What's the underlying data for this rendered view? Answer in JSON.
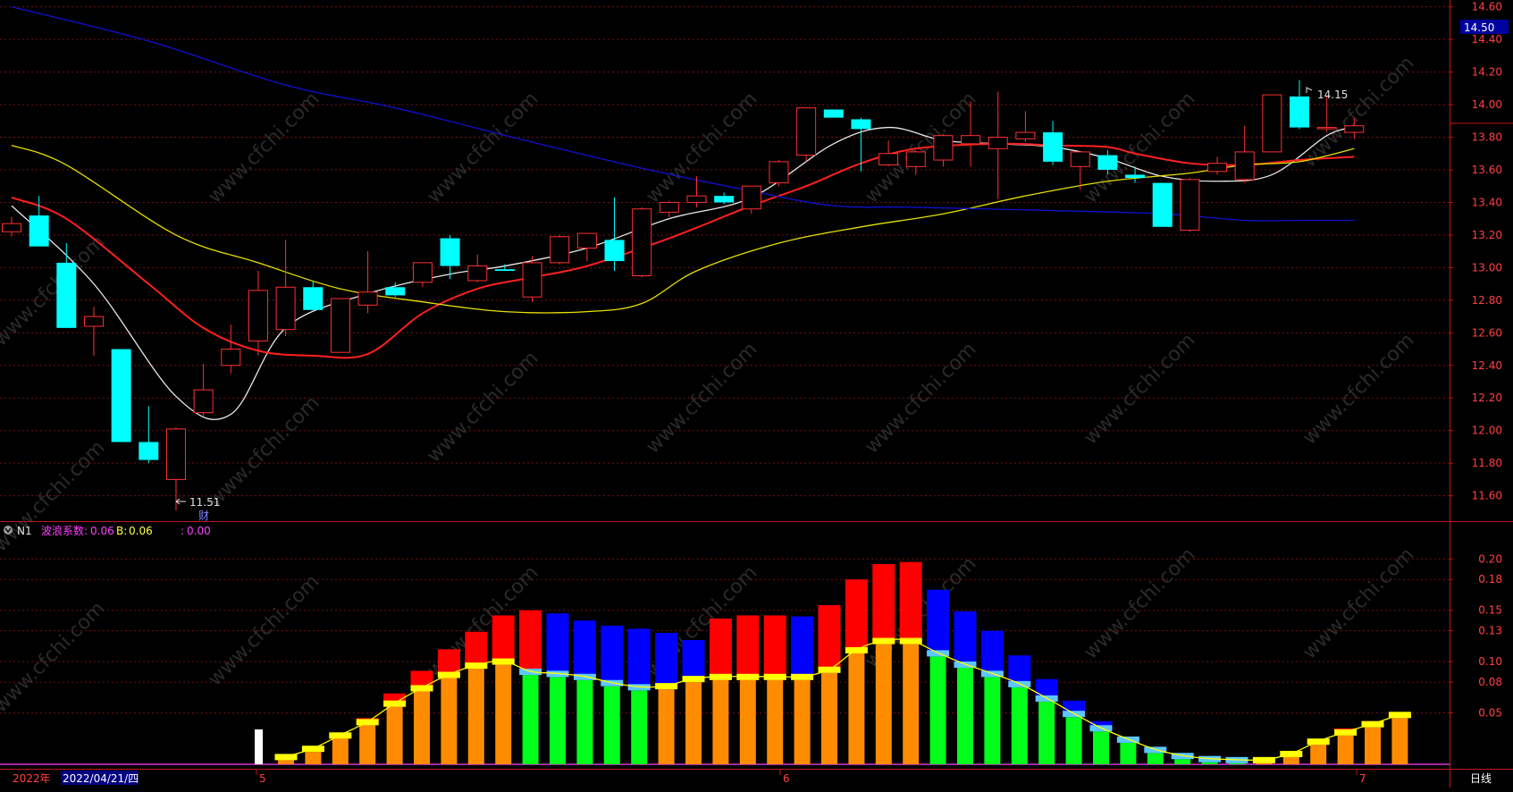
{
  "chart_data": [
    {
      "type": "candlestick",
      "panel": "price",
      "ylim": [
        11.45,
        14.62
      ],
      "y_ticks": [
        "14.60",
        "14.40",
        "14.20",
        "14.00",
        "13.80",
        "13.60",
        "13.40",
        "13.20",
        "13.00",
        "12.80",
        "12.60",
        "12.40",
        "12.20",
        "12.00",
        "11.80",
        "11.60"
      ],
      "current_price_label": "14.50",
      "annotations": {
        "high": "14.15",
        "low": "11.51",
        "low_marker": "财"
      },
      "candles": [
        {
          "o": 13.22,
          "h": 13.31,
          "l": 13.19,
          "c": 13.27
        },
        {
          "o": 13.32,
          "h": 13.44,
          "l": 13.13,
          "c": 13.13
        },
        {
          "o": 13.03,
          "h": 13.15,
          "l": 12.63,
          "c": 12.63
        },
        {
          "o": 12.64,
          "h": 12.76,
          "l": 12.46,
          "c": 12.7
        },
        {
          "o": 12.5,
          "h": 12.5,
          "l": 11.93,
          "c": 11.93
        },
        {
          "o": 11.93,
          "h": 12.15,
          "l": 11.8,
          "c": 11.82
        },
        {
          "o": 11.7,
          "h": 12.02,
          "l": 11.51,
          "c": 12.01
        },
        {
          "o": 12.11,
          "h": 12.41,
          "l": 12.09,
          "c": 12.25
        },
        {
          "o": 12.4,
          "h": 12.65,
          "l": 12.35,
          "c": 12.5
        },
        {
          "o": 12.55,
          "h": 12.98,
          "l": 12.46,
          "c": 12.86
        },
        {
          "o": 12.62,
          "h": 13.17,
          "l": 12.58,
          "c": 12.88
        },
        {
          "o": 12.88,
          "h": 12.92,
          "l": 12.74,
          "c": 12.74
        },
        {
          "o": 12.48,
          "h": 12.78,
          "l": 12.48,
          "c": 12.81
        },
        {
          "o": 12.77,
          "h": 13.1,
          "l": 12.72,
          "c": 12.85
        },
        {
          "o": 12.88,
          "h": 12.91,
          "l": 12.82,
          "c": 12.83
        },
        {
          "o": 12.91,
          "h": 13.03,
          "l": 12.88,
          "c": 13.03
        },
        {
          "o": 13.18,
          "h": 13.2,
          "l": 12.93,
          "c": 13.01
        },
        {
          "o": 12.92,
          "h": 13.08,
          "l": 12.91,
          "c": 13.01
        },
        {
          "o": 12.99,
          "h": 13.02,
          "l": 12.98,
          "c": 12.98
        },
        {
          "o": 12.82,
          "h": 13.07,
          "l": 12.79,
          "c": 13.03
        },
        {
          "o": 13.03,
          "h": 13.2,
          "l": 13.02,
          "c": 13.19
        },
        {
          "o": 13.12,
          "h": 13.21,
          "l": 13.04,
          "c": 13.21
        },
        {
          "o": 13.17,
          "h": 13.43,
          "l": 12.98,
          "c": 13.04
        },
        {
          "o": 12.95,
          "h": 13.37,
          "l": 12.94,
          "c": 13.36
        },
        {
          "o": 13.34,
          "h": 13.41,
          "l": 13.31,
          "c": 13.4
        },
        {
          "o": 13.4,
          "h": 13.56,
          "l": 13.37,
          "c": 13.44
        },
        {
          "o": 13.44,
          "h": 13.46,
          "l": 13.39,
          "c": 13.4
        },
        {
          "o": 13.36,
          "h": 13.48,
          "l": 13.33,
          "c": 13.5
        },
        {
          "o": 13.52,
          "h": 13.66,
          "l": 13.5,
          "c": 13.65
        },
        {
          "o": 13.69,
          "h": 13.97,
          "l": 13.65,
          "c": 13.98
        },
        {
          "o": 13.97,
          "h": 13.97,
          "l": 13.92,
          "c": 13.92
        },
        {
          "o": 13.91,
          "h": 13.92,
          "l": 13.59,
          "c": 13.85
        },
        {
          "o": 13.63,
          "h": 13.78,
          "l": 13.62,
          "c": 13.7
        },
        {
          "o": 13.62,
          "h": 13.72,
          "l": 13.57,
          "c": 13.71
        },
        {
          "o": 13.66,
          "h": 13.82,
          "l": 13.62,
          "c": 13.81
        },
        {
          "o": 13.76,
          "h": 14.02,
          "l": 13.62,
          "c": 13.81
        },
        {
          "o": 13.73,
          "h": 14.08,
          "l": 13.42,
          "c": 13.8
        },
        {
          "o": 13.79,
          "h": 13.96,
          "l": 13.77,
          "c": 13.83
        },
        {
          "o": 13.83,
          "h": 13.9,
          "l": 13.63,
          "c": 13.65
        },
        {
          "o": 13.62,
          "h": 13.69,
          "l": 13.48,
          "c": 13.71
        },
        {
          "o": 13.69,
          "h": 13.72,
          "l": 13.57,
          "c": 13.6
        },
        {
          "o": 13.57,
          "h": 13.62,
          "l": 13.52,
          "c": 13.55
        },
        {
          "o": 13.52,
          "h": 13.52,
          "l": 13.25,
          "c": 13.25
        },
        {
          "o": 13.23,
          "h": 13.55,
          "l": 13.22,
          "c": 13.54
        },
        {
          "o": 13.59,
          "h": 13.68,
          "l": 13.57,
          "c": 13.64
        },
        {
          "o": 13.54,
          "h": 13.87,
          "l": 13.52,
          "c": 13.71
        },
        {
          "o": 13.71,
          "h": 14.06,
          "l": 13.71,
          "c": 14.06
        },
        {
          "o": 14.05,
          "h": 14.15,
          "l": 13.85,
          "c": 13.86
        },
        {
          "o": 13.86,
          "h": 14.05,
          "l": 13.83,
          "c": 13.86
        },
        {
          "o": 13.83,
          "h": 13.92,
          "l": 13.79,
          "c": 13.87
        }
      ],
      "series": [
        {
          "name": "MA-white",
          "color": "#e8e8e8",
          "points": [
            [
              0,
              13.38
            ],
            [
              3,
              12.9
            ],
            [
              6,
              12.21
            ],
            [
              8,
              12.1
            ],
            [
              10,
              12.63
            ],
            [
              13,
              12.84
            ],
            [
              16,
              12.96
            ],
            [
              18,
              13.01
            ],
            [
              21,
              13.12
            ],
            [
              24,
              13.3
            ],
            [
              27,
              13.43
            ],
            [
              30,
              13.76
            ],
            [
              32,
              13.86
            ],
            [
              34,
              13.78
            ],
            [
              36,
              13.76
            ],
            [
              38,
              13.74
            ],
            [
              40,
              13.67
            ],
            [
              42,
              13.56
            ],
            [
              44,
              13.53
            ],
            [
              46,
              13.57
            ],
            [
              48,
              13.81
            ],
            [
              49,
              13.86
            ]
          ]
        },
        {
          "name": "MA-red",
          "color": "#ff2020",
          "points": [
            [
              0,
              13.43
            ],
            [
              2,
              13.3
            ],
            [
              5,
              12.9
            ],
            [
              7,
              12.63
            ],
            [
              9,
              12.49
            ],
            [
              11,
              12.46
            ],
            [
              13,
              12.47
            ],
            [
              15,
              12.72
            ],
            [
              17,
              12.87
            ],
            [
              19,
              12.94
            ],
            [
              21,
              13.01
            ],
            [
              24,
              13.18
            ],
            [
              27,
              13.38
            ],
            [
              29,
              13.5
            ],
            [
              31,
              13.64
            ],
            [
              33,
              13.73
            ],
            [
              36,
              13.76
            ],
            [
              38,
              13.75
            ],
            [
              40,
              13.74
            ],
            [
              41,
              13.7
            ],
            [
              43,
              13.64
            ],
            [
              45,
              13.63
            ],
            [
              47,
              13.66
            ],
            [
              49,
              13.68
            ]
          ]
        },
        {
          "name": "MA-yellow",
          "color": "#e8e000",
          "points": [
            [
              0,
              13.75
            ],
            [
              2,
              13.63
            ],
            [
              6,
              13.2
            ],
            [
              9,
              13.03
            ],
            [
              12,
              12.87
            ],
            [
              15,
              12.79
            ],
            [
              18,
              12.73
            ],
            [
              21,
              12.73
            ],
            [
              23,
              12.78
            ],
            [
              25,
              12.98
            ],
            [
              28,
              13.15
            ],
            [
              31,
              13.25
            ],
            [
              34,
              13.33
            ],
            [
              37,
              13.44
            ],
            [
              40,
              13.53
            ],
            [
              43,
              13.58
            ],
            [
              45,
              13.63
            ],
            [
              47,
              13.65
            ],
            [
              49,
              13.73
            ]
          ]
        },
        {
          "name": "MA-blue",
          "color": "#1010d0",
          "points": [
            [
              0,
              14.6
            ],
            [
              5,
              14.39
            ],
            [
              10,
              14.12
            ],
            [
              14,
              13.98
            ],
            [
              19,
              13.77
            ],
            [
              23,
              13.61
            ],
            [
              27,
              13.47
            ],
            [
              30,
              13.38
            ],
            [
              33,
              13.37
            ],
            [
              38,
              13.35
            ],
            [
              42,
              13.33
            ],
            [
              45,
              13.29
            ],
            [
              47,
              13.29
            ],
            [
              49,
              13.29
            ]
          ]
        }
      ]
    },
    {
      "type": "bar",
      "panel": "indicator",
      "name": "N1",
      "legend": {
        "label": "N1",
        "k1": "波浪系数:",
        "v1": "0.06",
        "k2": "B:",
        "v2": "0.06",
        "k3": ":",
        "v3": "0.00"
      },
      "ylim": [
        0,
        0.222
      ],
      "y_ticks": [
        "0.20",
        "0.18",
        "0.15",
        "0.13",
        "0.10",
        "0.08",
        "0.05"
      ],
      "values_top": [
        0.004,
        0.012,
        0.029,
        0.045,
        0.069,
        0.091,
        0.112,
        0.129,
        0.145,
        0.15,
        0.147,
        0.14,
        0.135,
        0.132,
        0.128,
        0.121,
        0.142,
        0.145,
        0.145,
        0.144,
        0.155,
        0.18,
        0.195,
        0.197,
        0.17,
        0.149,
        0.13,
        0.106,
        0.083,
        0.062,
        0.042,
        0.024,
        0.012,
        0.005,
        0.003,
        0.001,
        0.001,
        0.009,
        0.024,
        0.035,
        0.042,
        0.048
      ],
      "values_signal": [
        0.004,
        0.012,
        0.025,
        0.038,
        0.056,
        0.071,
        0.084,
        0.093,
        0.097,
        0.087,
        0.085,
        0.082,
        0.076,
        0.072,
        0.073,
        0.08,
        0.082,
        0.082,
        0.082,
        0.082,
        0.089,
        0.108,
        0.117,
        0.117,
        0.105,
        0.094,
        0.085,
        0.075,
        0.061,
        0.046,
        0.032,
        0.021,
        0.011,
        0.005,
        0.002,
        0.001,
        0.001,
        0.007,
        0.019,
        0.028,
        0.036,
        0.045
      ],
      "signal_line_color": "#ffff00",
      "white_bar_value": 0.034
    }
  ],
  "axis": {
    "x_labels": [
      "2022年",
      "2022/04/21/四",
      "5",
      "6",
      "7"
    ],
    "period": "日线"
  },
  "watermark": "www.cfchi.com",
  "colors": {
    "up": "#ff3030",
    "down": "#00ffff",
    "grid": "#7a1010",
    "bar_red": "#ff0000",
    "bar_blue": "#0000ff",
    "bar_orange": "#ff8c00",
    "bar_green": "#00ff1a",
    "cap_yellow": "#ffff00",
    "cap_cyan": "#5bc8ff",
    "axis_text": "#ff4040",
    "highlight_box": "#000080"
  }
}
